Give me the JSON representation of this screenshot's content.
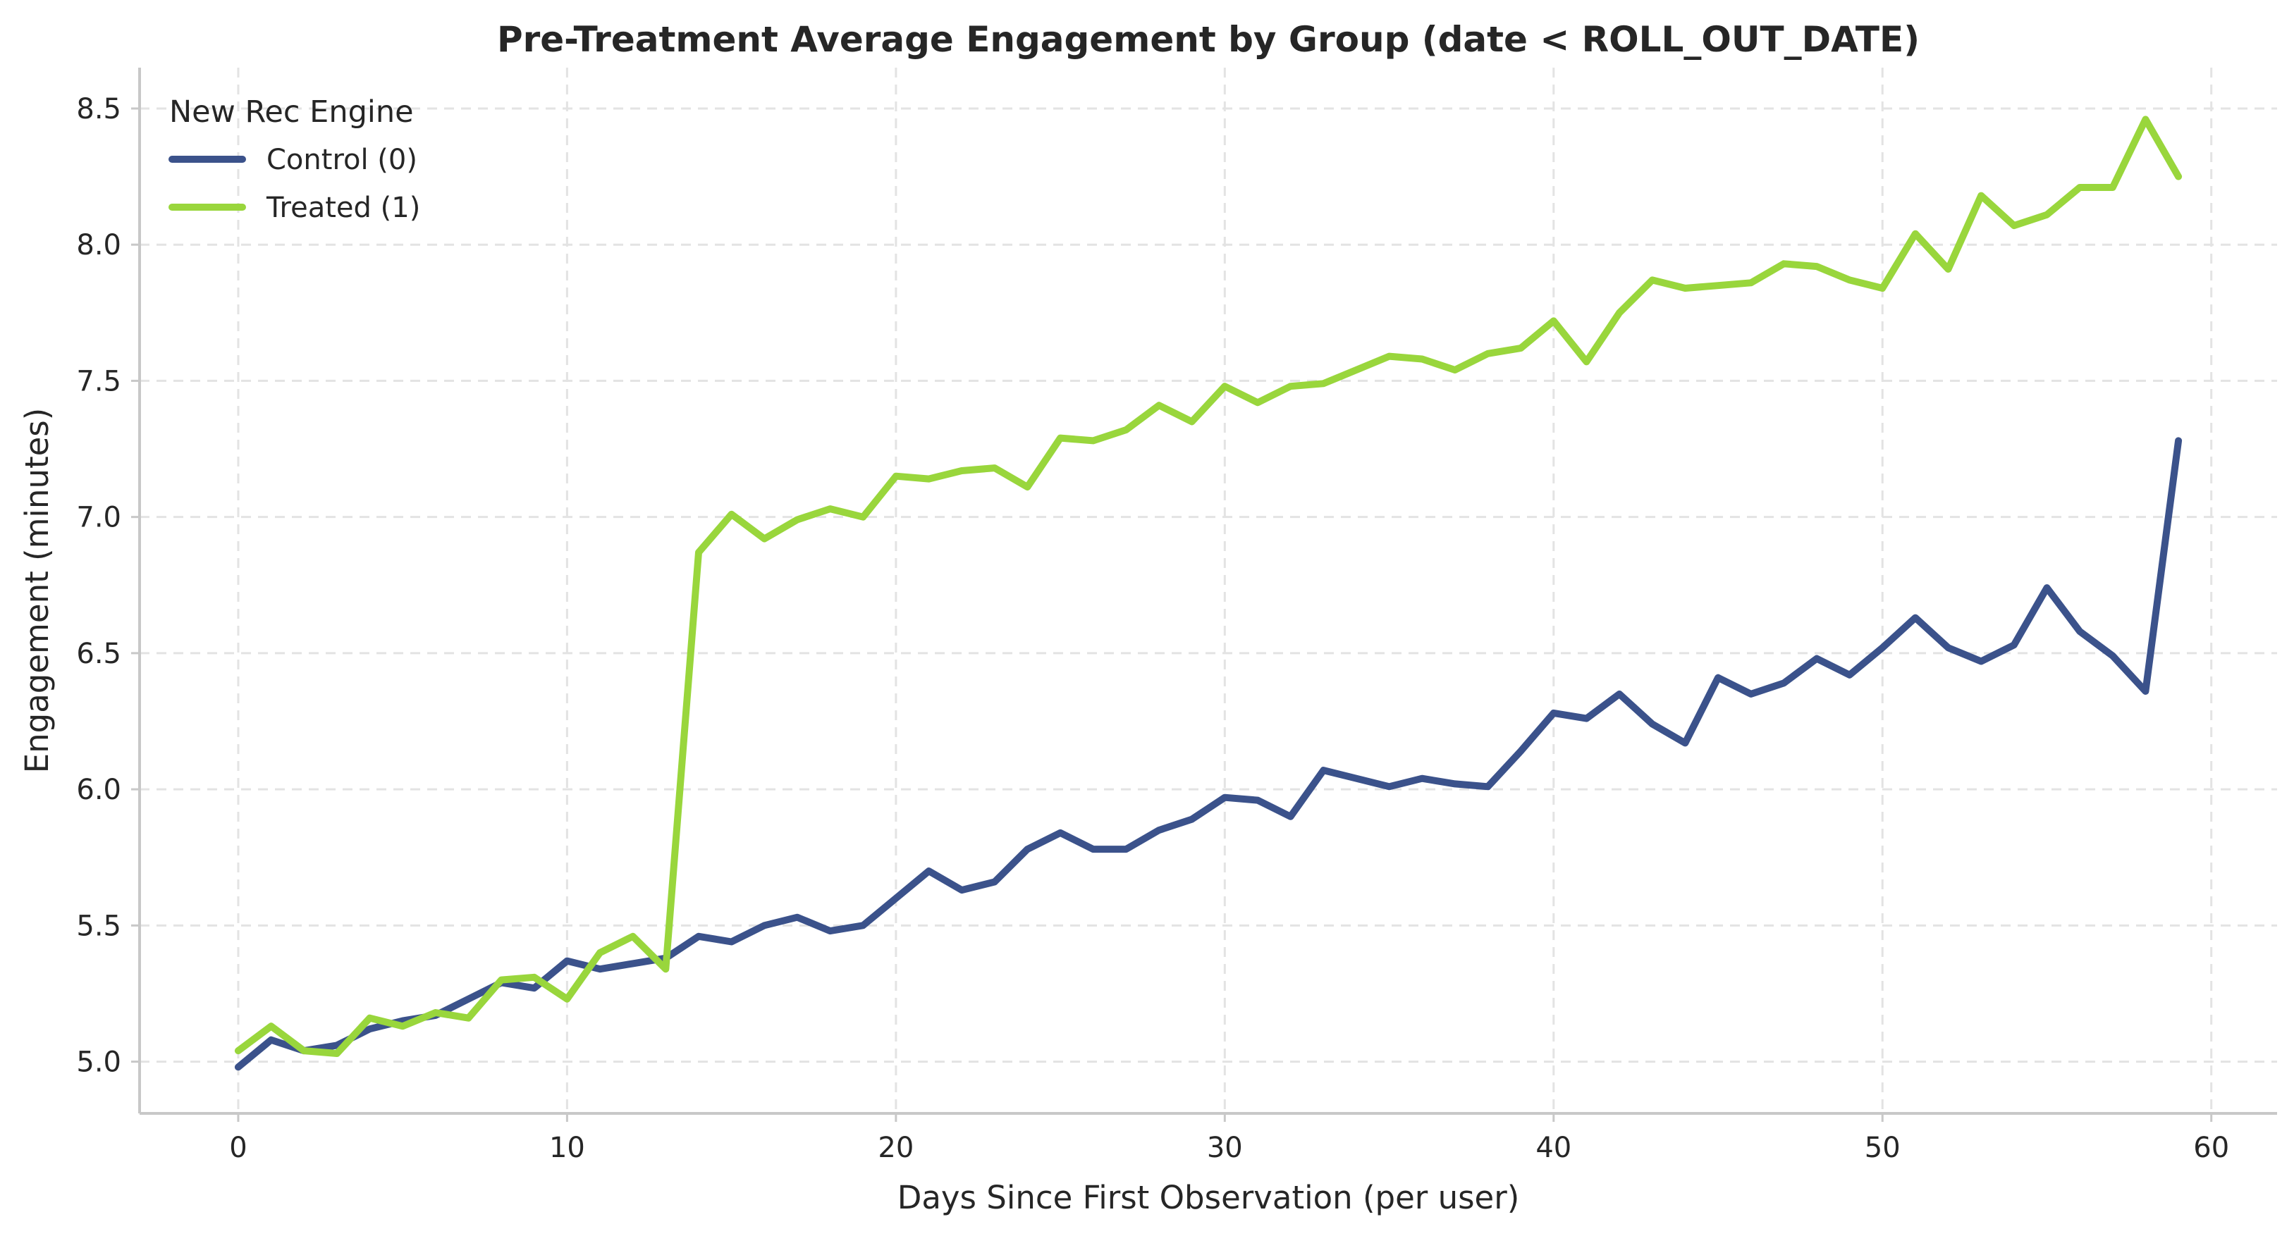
{
  "chart_data": {
    "type": "line",
    "title": "Pre-Treatment Average Engagement by Group (date < ROLL_OUT_DATE)",
    "xlabel": "Days Since First Observation (per user)",
    "ylabel": "Engagement (minutes)",
    "xlim": [
      -3,
      62
    ],
    "ylim": [
      4.81,
      8.65
    ],
    "xticks": [
      0,
      10,
      20,
      30,
      40,
      50,
      60
    ],
    "yticks": [
      5.0,
      5.5,
      6.0,
      6.5,
      7.0,
      7.5,
      8.0,
      8.5
    ],
    "ytick_labels": [
      "5.0",
      "5.5",
      "6.0",
      "6.5",
      "7.0",
      "7.5",
      "8.0",
      "8.5"
    ],
    "grid": true,
    "legend": {
      "title": "New Rec Engine",
      "position": "top-left"
    },
    "x": [
      0,
      1,
      2,
      3,
      4,
      5,
      6,
      7,
      8,
      9,
      10,
      11,
      12,
      13,
      14,
      15,
      16,
      17,
      18,
      19,
      20,
      21,
      22,
      23,
      24,
      25,
      26,
      27,
      28,
      29,
      30,
      31,
      32,
      33,
      34,
      35,
      36,
      37,
      38,
      39,
      40,
      41,
      42,
      43,
      44,
      45,
      46,
      47,
      48,
      49,
      50,
      51,
      52,
      53,
      54,
      55,
      56,
      57,
      58,
      59
    ],
    "series": [
      {
        "name": "Control (0)",
        "color": "#3b528b",
        "values": [
          4.98,
          5.08,
          5.04,
          5.06,
          5.12,
          5.15,
          5.17,
          5.23,
          5.29,
          5.27,
          5.37,
          5.34,
          5.36,
          5.38,
          5.46,
          5.44,
          5.5,
          5.53,
          5.48,
          5.5,
          5.6,
          5.7,
          5.63,
          5.66,
          5.78,
          5.84,
          5.78,
          5.78,
          5.85,
          5.89,
          5.97,
          5.96,
          5.9,
          6.07,
          6.04,
          6.01,
          6.04,
          6.02,
          6.01,
          6.14,
          6.28,
          6.26,
          6.35,
          6.24,
          6.17,
          6.41,
          6.35,
          6.39,
          6.48,
          6.42,
          6.52,
          6.63,
          6.52,
          6.47,
          6.53,
          6.74,
          6.58,
          6.49,
          6.36,
          7.28
        ]
      },
      {
        "name": "Treated (1)",
        "color": "#99d63c",
        "values": [
          5.04,
          5.13,
          5.04,
          5.03,
          5.16,
          5.13,
          5.18,
          5.16,
          5.3,
          5.31,
          5.23,
          5.4,
          5.46,
          5.34,
          6.87,
          7.01,
          6.92,
          6.99,
          7.03,
          7.0,
          7.15,
          7.14,
          7.17,
          7.18,
          7.11,
          7.29,
          7.28,
          7.32,
          7.41,
          7.35,
          7.48,
          7.42,
          7.48,
          7.49,
          7.54,
          7.59,
          7.58,
          7.54,
          7.6,
          7.62,
          7.72,
          7.57,
          7.75,
          7.87,
          7.84,
          7.85,
          7.86,
          7.93,
          7.92,
          7.87,
          7.84,
          8.04,
          7.91,
          8.18,
          8.07,
          8.11,
          8.21,
          8.21,
          8.46,
          8.25
        ]
      }
    ]
  }
}
